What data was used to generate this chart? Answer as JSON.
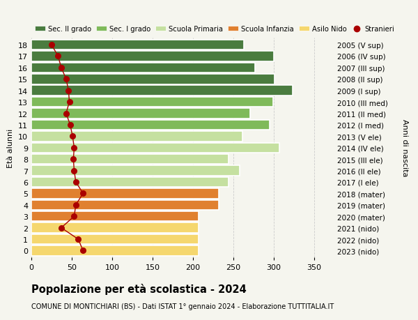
{
  "ages": [
    18,
    17,
    16,
    15,
    14,
    13,
    12,
    11,
    10,
    9,
    8,
    7,
    6,
    5,
    4,
    3,
    2,
    1,
    0
  ],
  "anni_nascita": [
    "2005 (V sup)",
    "2006 (IV sup)",
    "2007 (III sup)",
    "2008 (II sup)",
    "2009 (I sup)",
    "2010 (III med)",
    "2011 (II med)",
    "2012 (I med)",
    "2013 (V ele)",
    "2014 (IV ele)",
    "2015 (III ele)",
    "2016 (II ele)",
    "2017 (I ele)",
    "2018 (mater)",
    "2019 (mater)",
    "2020 (mater)",
    "2021 (nido)",
    "2022 (nido)",
    "2023 (nido)"
  ],
  "bar_values": [
    263,
    300,
    277,
    301,
    323,
    299,
    271,
    295,
    261,
    307,
    244,
    258,
    244,
    232,
    232,
    207,
    207,
    207,
    207
  ],
  "bar_colors": [
    "#4a7c3f",
    "#4a7c3f",
    "#4a7c3f",
    "#4a7c3f",
    "#4a7c3f",
    "#7fba5a",
    "#7fba5a",
    "#7fba5a",
    "#c5e0a0",
    "#c5e0a0",
    "#c5e0a0",
    "#c5e0a0",
    "#c5e0a0",
    "#e08030",
    "#e08030",
    "#e08030",
    "#f5d76e",
    "#f5d76e",
    "#f5d76e"
  ],
  "stranieri_values": [
    25,
    33,
    37,
    43,
    46,
    47,
    43,
    48,
    51,
    53,
    52,
    53,
    55,
    64,
    55,
    53,
    37,
    58,
    64
  ],
  "legend_labels": [
    "Sec. II grado",
    "Sec. I grado",
    "Scuola Primaria",
    "Scuola Infanzia",
    "Asilo Nido",
    "Stranieri"
  ],
  "legend_colors": [
    "#4a7c3f",
    "#7fba5a",
    "#c5e0a0",
    "#e08030",
    "#f5d76e",
    "#aa0000"
  ],
  "title": "Popolazione per età scolastica - 2024",
  "subtitle": "COMUNE DI MONTICHIARI (BS) - Dati ISTAT 1° gennaio 2024 - Elaborazione TUTTITALIA.IT",
  "ylabel_left": "Età alunni",
  "ylabel_right": "Anni di nascita",
  "xlim": [
    0,
    375
  ],
  "xticks": [
    0,
    50,
    100,
    150,
    200,
    250,
    300,
    350
  ],
  "background_color": "#f5f5ee",
  "bar_edgecolor": "#ffffff",
  "stranieri_color": "#aa0000"
}
